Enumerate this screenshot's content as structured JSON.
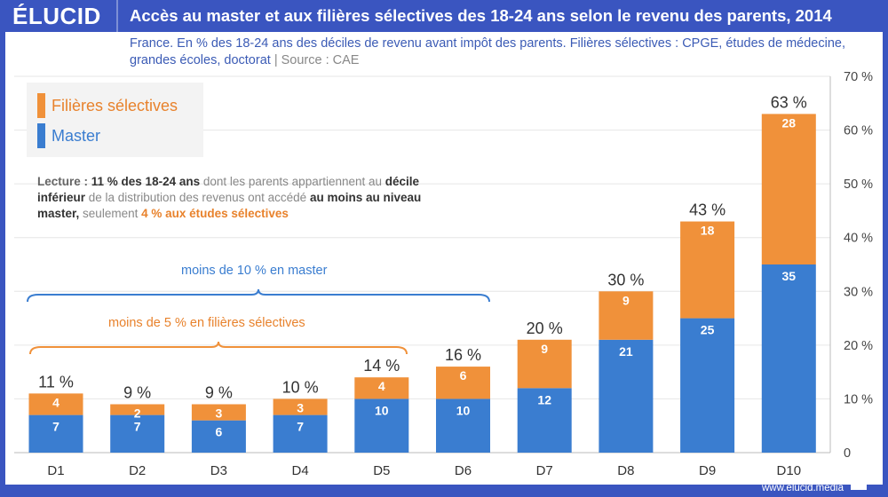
{
  "header": {
    "logo": "ÉLUCID",
    "title": "Accès au master et aux filières sélectives des 18-24 ans selon le revenu des parents, 2014"
  },
  "subtitle": {
    "text": "France. En % des 18-24 ans des déciles de revenu avant impôt des parents. Filières sélectives : CPGE, études de médecine, grandes écoles, doctorat",
    "separator": " | ",
    "source": "Source : CAE"
  },
  "legend": {
    "items": [
      {
        "label": "Filières sélectives",
        "color": "#f0913a"
      },
      {
        "label": "Master",
        "color": "#3a7dd0"
      }
    ]
  },
  "note": {
    "prefix": "Lecture : ",
    "bold1": "11 % des 18-24 ans",
    "text1": " dont les parents appartiennent au ",
    "bold2": "décile inférieur",
    "text2": " de la distribution des revenus ont accédé ",
    "bold3": "au moins au niveau master,",
    "text3": " seulement ",
    "highlight": "4 % aux études sélectives"
  },
  "annotations": {
    "master_brace": "moins de 10 % en master",
    "selective_brace": "moins de 5 % en filières sélectives"
  },
  "footer": {
    "url": "www.elucid.media"
  },
  "chart_data": {
    "type": "bar",
    "stacked": true,
    "title": "Accès au master et aux filières sélectives des 18-24 ans selon le revenu des parents, 2014",
    "categories": [
      "D1",
      "D2",
      "D3",
      "D4",
      "D5",
      "D6",
      "D7",
      "D8",
      "D9",
      "D10"
    ],
    "series": [
      {
        "name": "Master",
        "color": "#3a7dd0",
        "values": [
          7,
          7,
          6,
          7,
          10,
          10,
          12,
          21,
          25,
          35
        ]
      },
      {
        "name": "Filières sélectives",
        "color": "#f0913a",
        "values": [
          4,
          2,
          3,
          3,
          4,
          6,
          9,
          9,
          18,
          28
        ]
      }
    ],
    "totals": [
      11,
      9,
      9,
      10,
      14,
      16,
      20,
      30,
      43,
      63
    ],
    "total_labels": [
      "11 %",
      "9 %",
      "9 %",
      "10 %",
      "14 %",
      "16 %",
      "20 %",
      "30 %",
      "43 %",
      "63 %"
    ],
    "ylim": [
      0,
      70
    ],
    "yticks": [
      0,
      10,
      20,
      30,
      40,
      50,
      60,
      70
    ],
    "ytick_labels": [
      "0",
      "10 %",
      "20 %",
      "30 %",
      "40 %",
      "50 %",
      "60 %",
      "70 %"
    ],
    "y_axis_side": "right",
    "grid": true,
    "legend_position": "top-left",
    "xlabel": "",
    "ylabel": ""
  }
}
